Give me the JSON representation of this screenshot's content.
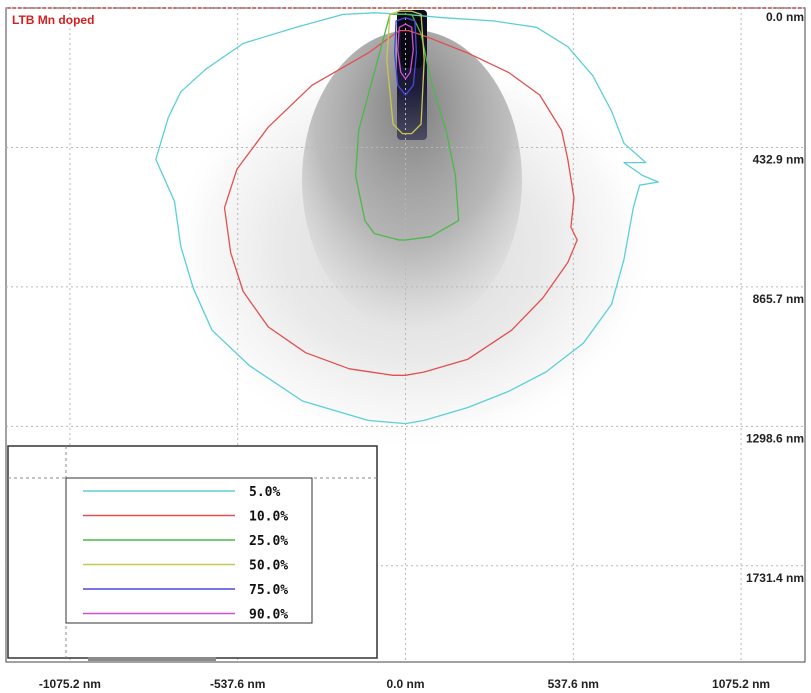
{
  "chart_data": {
    "type": "heatmap",
    "title": "LTB Mn doped",
    "title_color": "#d42020",
    "x_ticks": [
      "-1075.2 nm",
      "-537.6 nm",
      "0.0 nm",
      "537.6 nm",
      "1075.2 nm"
    ],
    "x_tick_values": [
      -1075.2,
      -537.6,
      0.0,
      537.6,
      1075.2
    ],
    "y_ticks": [
      "0.0 nm",
      "432.9 nm",
      "865.7 nm",
      "1298.6 nm",
      "1731.4 nm"
    ],
    "y_tick_values": [
      0.0,
      432.9,
      865.7,
      1298.6,
      1731.4
    ],
    "xlim": [
      -1280,
      1280
    ],
    "ylim": [
      0,
      2030
    ],
    "y_inverted": true,
    "grid": true,
    "legend_position": "bottom-left",
    "series": [
      {
        "name": "5.0%",
        "color": "#5ccfd6",
        "x": [
          -200,
          -350,
          -520,
          -640,
          -720,
          -760,
          -800,
          -740,
          -720,
          -680,
          -620,
          -500,
          -330,
          -120,
          0,
          60,
          200,
          330,
          450,
          570,
          660,
          700,
          730,
          750,
          810,
          760,
          700,
          770,
          700,
          660,
          600,
          520,
          420,
          280,
          120,
          0,
          -100,
          -200
        ],
        "y": [
          20,
          60,
          110,
          190,
          260,
          340,
          470,
          600,
          740,
          870,
          1000,
          1110,
          1220,
          1280,
          1290,
          1280,
          1240,
          1190,
          1130,
          1040,
          920,
          780,
          620,
          550,
          540,
          520,
          480,
          480,
          420,
          320,
          210,
          120,
          60,
          40,
          30,
          20,
          15,
          20
        ]
      },
      {
        "name": "10.0%",
        "color": "#e05050",
        "x": [
          -20,
          -120,
          -300,
          -440,
          -540,
          -580,
          -560,
          -520,
          -440,
          -320,
          -180,
          -40,
          0,
          60,
          200,
          340,
          440,
          520,
          550,
          530,
          540,
          520,
          500,
          430,
          330,
          200,
          70,
          10,
          -20
        ],
        "y": [
          70,
          140,
          240,
          370,
          500,
          620,
          760,
          880,
          990,
          1070,
          1120,
          1140,
          1140,
          1130,
          1090,
          1000,
          900,
          790,
          720,
          680,
          590,
          470,
          380,
          270,
          200,
          140,
          90,
          70,
          70
        ]
      },
      {
        "name": "25.0%",
        "color": "#4cb84c",
        "x": [
          -50,
          -100,
          -150,
          -160,
          -130,
          -100,
          -20,
          0,
          80,
          170,
          160,
          130,
          80,
          50,
          20,
          -20,
          -50
        ],
        "y": [
          20,
          200,
          380,
          520,
          660,
          700,
          720,
          720,
          710,
          660,
          520,
          380,
          220,
          80,
          20,
          20,
          20
        ]
      },
      {
        "name": "50.0%",
        "color": "#c8c850",
        "x": [
          -50,
          -60,
          -40,
          -10,
          0,
          20,
          50,
          60,
          50,
          20,
          -20,
          -50
        ],
        "y": [
          20,
          160,
          360,
          390,
          390,
          390,
          360,
          160,
          20,
          10,
          10,
          20
        ]
      },
      {
        "name": "75.0%",
        "color": "#4848d8",
        "x": [
          -30,
          -35,
          -25,
          0,
          25,
          35,
          30,
          0,
          -30
        ],
        "y": [
          40,
          140,
          240,
          270,
          240,
          140,
          40,
          30,
          40
        ]
      },
      {
        "name": "90.0%",
        "color": "#d050d0",
        "x": [
          -20,
          -25,
          -15,
          0,
          15,
          25,
          20,
          0,
          -20
        ],
        "y": [
          60,
          130,
          200,
          220,
          200,
          130,
          60,
          50,
          60
        ]
      }
    ]
  }
}
